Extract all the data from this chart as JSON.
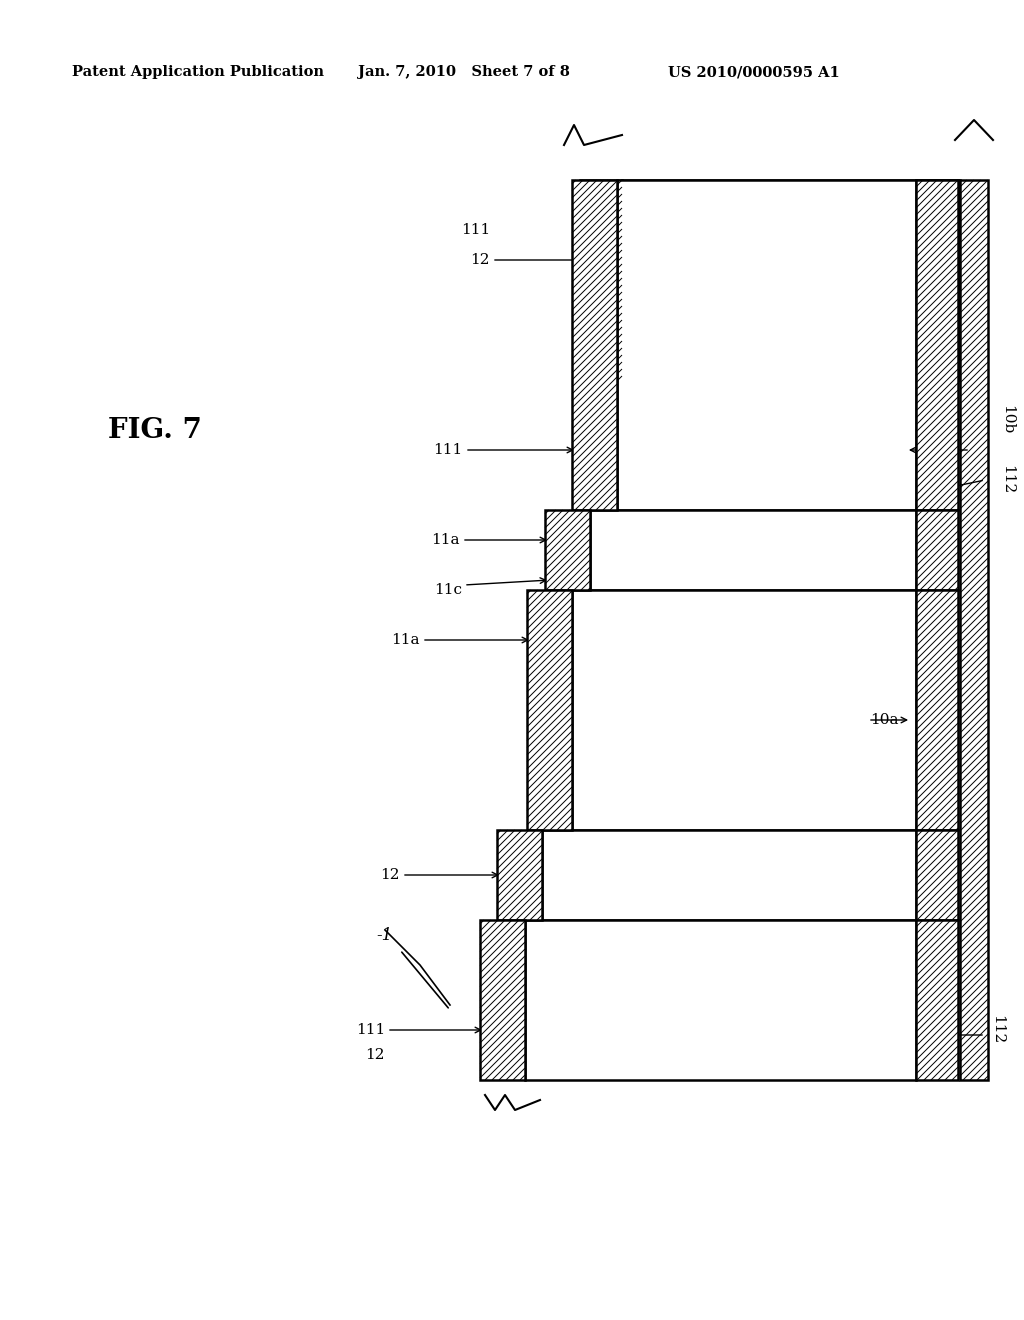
{
  "header_left": "Patent Application Publication",
  "header_mid": "Jan. 7, 2010   Sheet 7 of 8",
  "header_right": "US 2010/0000595 A1",
  "fig_label": "FIG. 7",
  "background": "#ffffff",
  "label_1": "-1",
  "label_10a": "10a",
  "label_10b": "10b",
  "label_11a_top": "11a",
  "label_11a_mid": "11a",
  "label_11c": "11c",
  "label_111_brace": "111",
  "label_111_top": "111",
  "label_112_right_top": "112",
  "label_112_right_bot": "112",
  "label_12_mid": "12",
  "label_12_top": "12",
  "label_12_bot": "12",
  "label_111_bot": "111"
}
